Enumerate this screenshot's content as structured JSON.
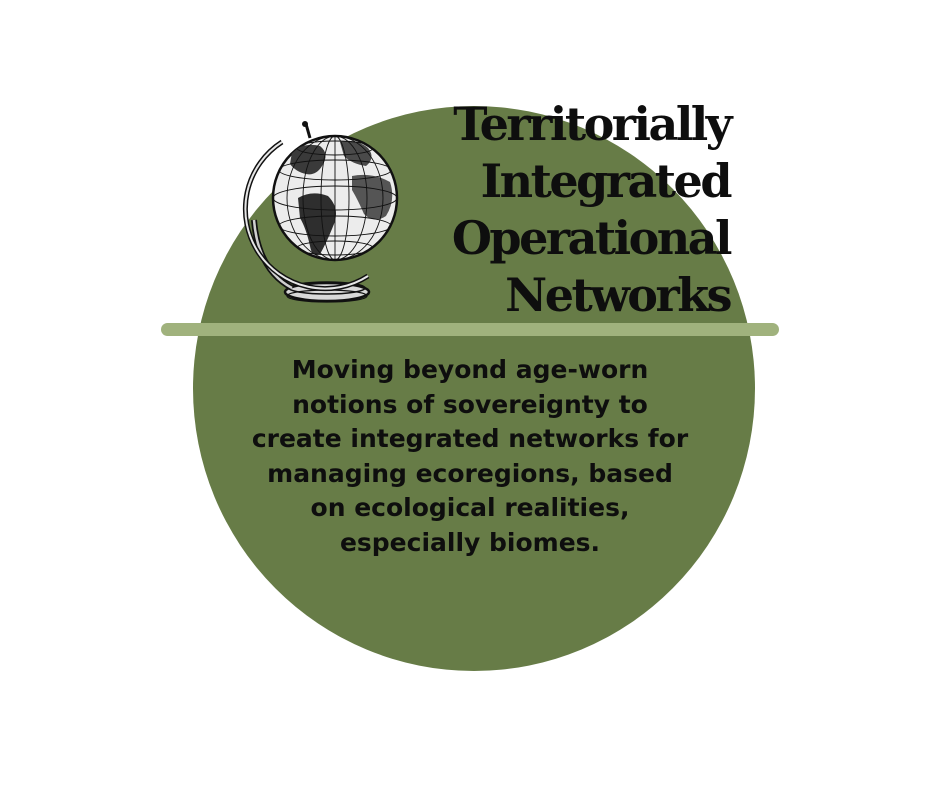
{
  "title_lines": [
    "Territorially",
    "Integrated",
    "Operational",
    "Networks"
  ],
  "description_lines": [
    "Moving beyond age-worn",
    "notions of sovereignty to",
    "create integrated networks for",
    "managing ecoregions, based",
    "on ecological realities,",
    "especially biomes."
  ],
  "colors": {
    "background": "#ffffff",
    "circle": "#677c47",
    "divider": "#a0b27d",
    "text": "#0e0e0e"
  },
  "icons": [
    "globe-icon"
  ]
}
